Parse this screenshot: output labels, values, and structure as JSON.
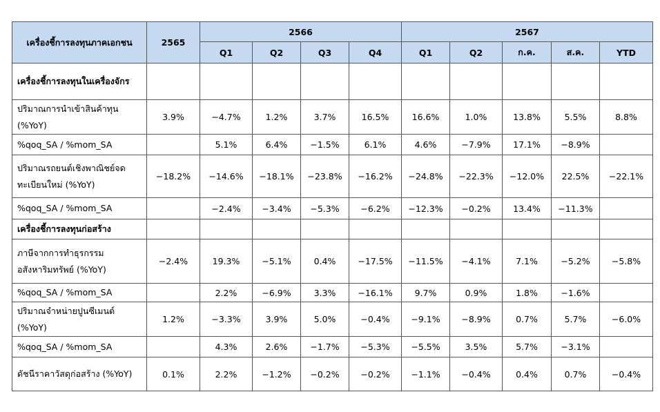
{
  "header": {
    "corner": "เครื่องชี้การลงทุนภาคเอกชน",
    "y2565": "2565",
    "y2566": "2566",
    "y2567": "2567",
    "cols": [
      "Q1",
      "Q2",
      "Q3",
      "Q4",
      "Q1",
      "Q2",
      "ก.ค.",
      "ส.ค.",
      "YTD"
    ]
  },
  "rows": [
    {
      "kind": "section",
      "label": "เครื่องชี้การลงทุนในเครื่องจักร",
      "values": [
        "",
        "",
        "",
        "",
        "",
        "",
        "",
        "",
        "",
        ""
      ]
    },
    {
      "kind": "data",
      "label": "ปริมาณการนำเข้าสินค้าทุน (%YoY)",
      "values": [
        "3.9%",
        "−4.7%",
        "1.2%",
        "3.7%",
        "16.5%",
        "16.6%",
        "1.0%",
        "13.8%",
        "5.5%",
        "8.8%"
      ]
    },
    {
      "kind": "data",
      "label": "%qoq_SA / %mom_SA",
      "values": [
        "",
        "5.1%",
        "6.4%",
        "−1.5%",
        "6.1%",
        "4.6%",
        "−7.9%",
        "17.1%",
        "−8.9%",
        ""
      ]
    },
    {
      "kind": "data",
      "label": "ปริมาณรถยนต์เชิงพาณิชย์จดทะเบียนใหม่ (%YoY)",
      "values": [
        "−18.2%",
        "−14.6%",
        "−18.1%",
        "−23.8%",
        "−16.2%",
        "−24.8%",
        "−22.3%",
        "−12.0%",
        "22.5%",
        "−22.1%"
      ]
    },
    {
      "kind": "data",
      "label": "%qoq_SA / %mom_SA",
      "values": [
        "",
        "−2.4%",
        "−3.4%",
        "−5.3%",
        "−6.2%",
        "−12.3%",
        "−0.2%",
        "13.4%",
        "−11.3%",
        ""
      ]
    },
    {
      "kind": "section",
      "label": "เครื่องชี้การลงทุนก่อสร้าง",
      "values": [
        "",
        "",
        "",
        "",
        "",
        "",
        "",
        "",
        "",
        ""
      ]
    },
    {
      "kind": "data",
      "label": "ภาษีจากการทำธุรกรรมอสังหาริมทรัพย์ (%YoY)",
      "values": [
        "−2.4%",
        "19.3%",
        "−5.1%",
        "0.4%",
        "−17.5%",
        "−11.5%",
        "−4.1%",
        "7.1%",
        "−5.2%",
        "−5.8%"
      ]
    },
    {
      "kind": "data",
      "label": "%qoq_SA / %mom_SA",
      "values": [
        "",
        "2.2%",
        "−6.9%",
        "3.3%",
        "−16.1%",
        "9.7%",
        "0.9%",
        "1.8%",
        "−1.6%",
        ""
      ]
    },
    {
      "kind": "data",
      "label": "ปริมาณจำหน่ายปูนซีเมนต์ (%YoY)",
      "values": [
        "1.2%",
        "−3.3%",
        "3.9%",
        "5.0%",
        "−0.4%",
        "−9.1%",
        "−8.9%",
        "0.7%",
        "5.7%",
        "−6.0%"
      ]
    },
    {
      "kind": "data",
      "label": "%qoq_SA / %mom_SA",
      "values": [
        "",
        "4.3%",
        "2.6%",
        "−1.7%",
        "−5.3%",
        "−5.5%",
        "3.5%",
        "5.7%",
        "−3.1%",
        ""
      ]
    },
    {
      "kind": "data",
      "label": "ดัชนีราคาวัสดุก่อสร้าง (%YoY)",
      "values": [
        "0.1%",
        "2.2%",
        "−1.2%",
        "−0.2%",
        "−0.2%",
        "−1.1%",
        "−0.4%",
        "0.4%",
        "0.7%",
        "−0.4%"
      ]
    }
  ]
}
